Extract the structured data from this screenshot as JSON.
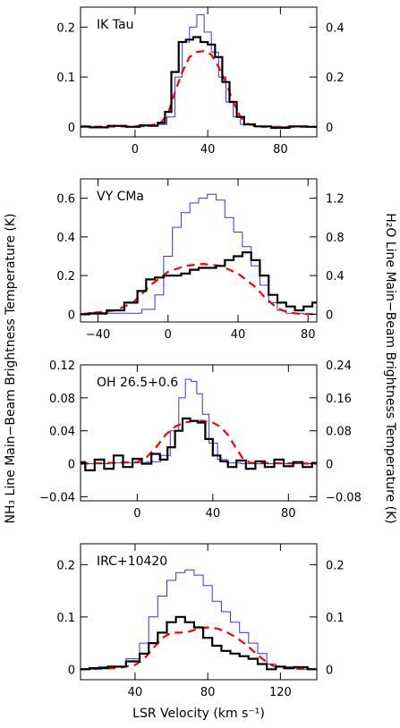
{
  "figure": {
    "left_label": "NH₃ Line Main−Beam Brightness Temperature (K)",
    "right_label": "H₂O Line Main−Beam Brightness Temperature (K)",
    "x_label": "LSR Velocity (km s⁻¹)"
  },
  "colors": {
    "nh3": "#000000",
    "h2o": "#3333ff",
    "model": "#ff0000"
  },
  "chart_data": [
    {
      "type": "line",
      "title": "IK Tau",
      "xlim": [
        -30,
        100
      ],
      "ylim": [
        -0.02,
        0.24
      ],
      "y2lim": [
        -0.04,
        0.48
      ],
      "x_ticks": [
        0,
        40,
        80
      ],
      "y_ticks": [
        0,
        0.1,
        0.2
      ],
      "y2_ticks": [
        0,
        0.2,
        0.4
      ],
      "x_tick_labels": [
        "0",
        "40",
        "80"
      ],
      "y_tick_labels": [
        "0",
        "0.1",
        "0.2"
      ],
      "y2_tick_labels": [
        "0",
        "0.2",
        "0.4"
      ],
      "series": [
        {
          "axis": "left",
          "style": "nh3",
          "x": [
            -30,
            -20,
            -10,
            0,
            5,
            10,
            15,
            18,
            22,
            26,
            30,
            34,
            38,
            42,
            46,
            50,
            54,
            58,
            62,
            70,
            80,
            90,
            100
          ],
          "y": [
            0.001,
            -0.001,
            0.002,
            0.0,
            0.003,
            0.002,
            0.008,
            0.03,
            0.11,
            0.17,
            0.175,
            0.18,
            0.17,
            0.165,
            0.14,
            0.09,
            0.05,
            0.02,
            0.005,
            0.001,
            -0.002,
            0.001,
            0.0
          ]
        },
        {
          "axis": "right",
          "style": "h2o",
          "x": [
            -30,
            -20,
            -10,
            0,
            10,
            15,
            20,
            24,
            28,
            32,
            36,
            40,
            44,
            48,
            52,
            56,
            60,
            70,
            80,
            100
          ],
          "y": [
            0.002,
            0.0,
            0.002,
            0.0,
            0.004,
            0.01,
            0.04,
            0.2,
            0.34,
            0.4,
            0.45,
            0.38,
            0.3,
            0.2,
            0.1,
            0.04,
            0.01,
            0.002,
            0.0,
            0.0
          ]
        },
        {
          "axis": "left",
          "style": "model",
          "x": [
            -30,
            0,
            10,
            14,
            18,
            22,
            26,
            30,
            34,
            38,
            42,
            46,
            50,
            54,
            58,
            62,
            70,
            100
          ],
          "y": [
            0.0,
            0.001,
            0.004,
            0.008,
            0.025,
            0.07,
            0.11,
            0.14,
            0.15,
            0.152,
            0.145,
            0.12,
            0.09,
            0.05,
            0.02,
            0.006,
            0.0,
            0.0
          ]
        }
      ]
    },
    {
      "type": "line",
      "title": "VY CMa",
      "xlim": [
        -50,
        85
      ],
      "ylim": [
        -0.04,
        0.7
      ],
      "y2lim": [
        -0.08,
        1.4
      ],
      "x_ticks": [
        -40,
        0,
        40,
        80
      ],
      "y_ticks": [
        0,
        0.2,
        0.4,
        0.6
      ],
      "y2_ticks": [
        0,
        0.4,
        0.8,
        1.2
      ],
      "x_tick_labels": [
        "−40",
        "0",
        "40",
        "80"
      ],
      "y_tick_labels": [
        "0",
        "0.2",
        "0.4",
        "0.6"
      ],
      "y2_tick_labels": [
        "0",
        "0.4",
        "0.8",
        "1.2"
      ],
      "series": [
        {
          "axis": "left",
          "style": "nh3",
          "x": [
            -50,
            -40,
            -30,
            -20,
            -15,
            -10,
            -5,
            0,
            5,
            10,
            15,
            20,
            25,
            30,
            35,
            40,
            45,
            50,
            55,
            60,
            65,
            70,
            75,
            80,
            85
          ],
          "y": [
            0.0,
            0.005,
            0.02,
            0.06,
            0.12,
            0.18,
            0.19,
            0.2,
            0.2,
            0.21,
            0.23,
            0.24,
            0.24,
            0.25,
            0.28,
            0.3,
            0.32,
            0.28,
            0.2,
            0.1,
            0.06,
            0.04,
            0.02,
            0.04,
            0.06
          ]
        },
        {
          "axis": "right",
          "style": "h2o",
          "x": [
            -50,
            -20,
            -10,
            -5,
            0,
            5,
            10,
            15,
            20,
            25,
            30,
            35,
            40,
            45,
            50,
            55,
            60,
            65,
            70,
            85
          ],
          "y": [
            0.0,
            0.01,
            0.05,
            0.2,
            0.6,
            0.9,
            1.05,
            1.15,
            1.2,
            1.24,
            1.18,
            1.0,
            0.85,
            0.7,
            0.5,
            0.3,
            0.12,
            0.04,
            0.01,
            0.0
          ]
        },
        {
          "axis": "left",
          "style": "model",
          "x": [
            -50,
            -30,
            -20,
            -10,
            0,
            10,
            20,
            25,
            30,
            40,
            50,
            55,
            60,
            65,
            70,
            75,
            85
          ],
          "y": [
            0.0,
            0.02,
            0.06,
            0.15,
            0.22,
            0.25,
            0.26,
            0.255,
            0.25,
            0.21,
            0.14,
            0.09,
            0.05,
            0.02,
            0.008,
            0.002,
            0.0
          ]
        }
      ]
    },
    {
      "type": "line",
      "title": "OH 26.5+0.6",
      "xlim": [
        -30,
        95
      ],
      "ylim": [
        -0.045,
        0.12
      ],
      "y2lim": [
        -0.09,
        0.24
      ],
      "x_ticks": [
        0,
        40,
        80
      ],
      "y_ticks": [
        -0.04,
        0,
        0.04,
        0.08,
        0.12
      ],
      "y2_ticks": [
        -0.08,
        0,
        0.08,
        0.16,
        0.24
      ],
      "x_tick_labels": [
        "0",
        "40",
        "80"
      ],
      "y_tick_labels": [
        "−0.04",
        "0",
        "0.04",
        "0.08",
        "0.12"
      ],
      "y2_tick_labels": [
        "−0.08",
        "0",
        "0.08",
        "0.16",
        "0.24"
      ],
      "series": [
        {
          "axis": "left",
          "style": "nh3",
          "x": [
            -30,
            -25,
            -20,
            -15,
            -10,
            -5,
            0,
            5,
            10,
            14,
            18,
            22,
            26,
            30,
            34,
            38,
            42,
            46,
            50,
            55,
            60,
            65,
            70,
            75,
            80,
            85,
            90,
            95
          ],
          "y": [
            0.002,
            -0.008,
            0.005,
            -0.006,
            0.01,
            -0.004,
            0.006,
            0.0,
            0.012,
            0.005,
            0.02,
            0.04,
            0.055,
            0.052,
            0.05,
            0.03,
            0.01,
            0.003,
            -0.004,
            0.004,
            -0.006,
            0.003,
            -0.004,
            0.005,
            -0.003,
            0.002,
            -0.004,
            0.001
          ]
        },
        {
          "axis": "right",
          "style": "h2o",
          "x": [
            -30,
            0,
            10,
            15,
            20,
            24,
            27,
            30,
            33,
            36,
            40,
            45,
            50,
            60,
            95
          ],
          "y": [
            0.0,
            0.002,
            0.005,
            0.02,
            0.08,
            0.16,
            0.205,
            0.2,
            0.17,
            0.12,
            0.05,
            0.01,
            0.002,
            0.0,
            0.0
          ]
        },
        {
          "axis": "left",
          "style": "model",
          "x": [
            -30,
            0,
            5,
            10,
            15,
            20,
            25,
            30,
            35,
            40,
            44,
            48,
            52,
            56,
            60,
            95
          ],
          "y": [
            0.0,
            0.002,
            0.008,
            0.02,
            0.035,
            0.045,
            0.05,
            0.052,
            0.052,
            0.05,
            0.045,
            0.035,
            0.02,
            0.006,
            0.001,
            0.0
          ]
        }
      ]
    },
    {
      "type": "line",
      "title": "IRC+10420",
      "xlim": [
        10,
        140
      ],
      "ylim": [
        -0.02,
        0.24
      ],
      "y2lim": [
        -0.02,
        0.24
      ],
      "x_ticks": [
        40,
        80,
        120
      ],
      "y_ticks": [
        0,
        0.1,
        0.2
      ],
      "y2_ticks": [
        0,
        0.1,
        0.2
      ],
      "x_tick_labels": [
        "40",
        "80",
        "120"
      ],
      "y_tick_labels": [
        "0",
        "0.1",
        "0.2"
      ],
      "y2_tick_labels": [
        "0",
        "0.1",
        "0.2"
      ],
      "series": [
        {
          "axis": "left",
          "style": "nh3",
          "x": [
            10,
            20,
            30,
            40,
            45,
            50,
            55,
            60,
            65,
            70,
            75,
            80,
            85,
            90,
            95,
            100,
            105,
            110,
            115,
            120,
            125,
            130,
            140
          ],
          "y": [
            0.0,
            0.002,
            0.005,
            0.015,
            0.03,
            0.05,
            0.07,
            0.09,
            0.1,
            0.09,
            0.08,
            0.06,
            0.045,
            0.035,
            0.03,
            0.025,
            0.02,
            0.01,
            0.0,
            0.005,
            0.002,
            0.004,
            0.0
          ]
        },
        {
          "axis": "right",
          "style": "h2o",
          "x": [
            10,
            30,
            40,
            45,
            50,
            55,
            60,
            65,
            70,
            75,
            80,
            85,
            90,
            95,
            100,
            105,
            110,
            115,
            120,
            140
          ],
          "y": [
            0.0,
            0.005,
            0.02,
            0.05,
            0.1,
            0.14,
            0.17,
            0.185,
            0.19,
            0.18,
            0.16,
            0.13,
            0.11,
            0.09,
            0.07,
            0.05,
            0.03,
            0.01,
            0.005,
            0.0
          ]
        },
        {
          "axis": "left",
          "style": "model",
          "x": [
            10,
            30,
            40,
            45,
            50,
            55,
            60,
            65,
            70,
            75,
            80,
            85,
            90,
            95,
            100,
            105,
            110,
            115,
            120,
            140
          ],
          "y": [
            0.0,
            0.002,
            0.008,
            0.02,
            0.04,
            0.06,
            0.07,
            0.07,
            0.072,
            0.078,
            0.08,
            0.078,
            0.072,
            0.062,
            0.05,
            0.035,
            0.02,
            0.008,
            0.002,
            0.0
          ]
        }
      ]
    }
  ]
}
